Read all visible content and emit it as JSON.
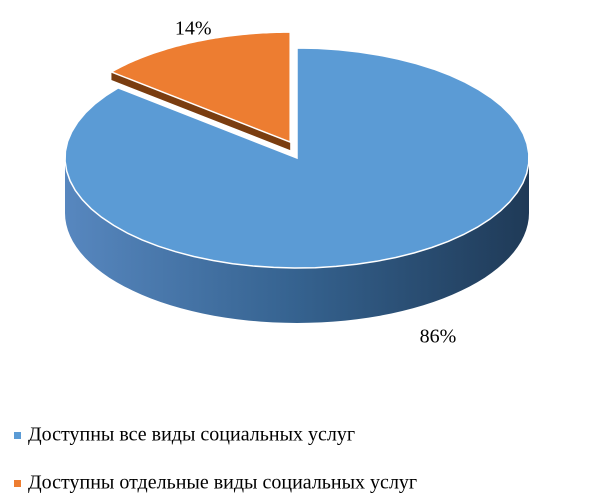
{
  "chart_data": {
    "type": "pie3d",
    "categories": [
      "Доступны все виды социальных услуг",
      "Доступны отдельные виды социальных услуг"
    ],
    "values": [
      86,
      14
    ],
    "value_labels": [
      "86%",
      "14%"
    ],
    "colors": [
      "#5b9bd5",
      "#ed7d31"
    ],
    "legend": "bottom"
  }
}
